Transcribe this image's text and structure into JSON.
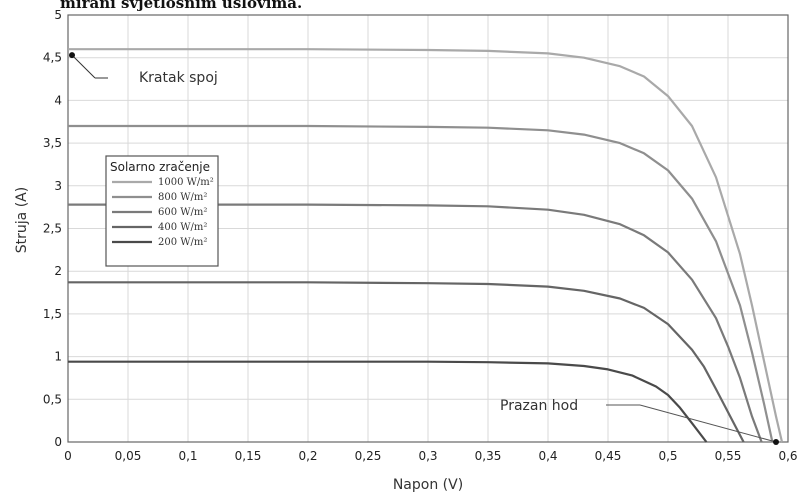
{
  "header_text": "mirani svjetlosnim uslovima.",
  "chart_data": {
    "type": "line",
    "xlabel": "Napon (V)",
    "ylabel": "Struja (A)",
    "xlim": [
      0,
      0.6
    ],
    "ylim": [
      0,
      5
    ],
    "x_ticks": [
      "0",
      "0,05",
      "0,1",
      "0,15",
      "0,2",
      "0,25",
      "0,3",
      "0,35",
      "0,4",
      "0,45",
      "0,5",
      "0,55",
      "0,6"
    ],
    "y_ticks": [
      "0",
      "0,5",
      "1",
      "1,5",
      "2",
      "2,5",
      "3",
      "3,5",
      "4",
      "4,5",
      "5"
    ],
    "grid": true,
    "legend": {
      "title": "Solarno zračenje",
      "placement": "upper-left",
      "entries": [
        "1000 W/m²",
        "800 W/m²",
        "600 W/m²",
        "400 W/m²",
        "200 W/m²"
      ]
    },
    "series": [
      {
        "name": "1000 W/m²",
        "color": "#a9a9a9",
        "x": [
          0,
          0.1,
          0.2,
          0.3,
          0.35,
          0.4,
          0.43,
          0.46,
          0.48,
          0.5,
          0.52,
          0.54,
          0.56,
          0.57,
          0.58,
          0.59,
          0.595
        ],
        "y": [
          4.6,
          4.6,
          4.6,
          4.59,
          4.58,
          4.55,
          4.5,
          4.4,
          4.28,
          4.05,
          3.7,
          3.1,
          2.2,
          1.6,
          0.95,
          0.3,
          0
        ]
      },
      {
        "name": "800 W/m²",
        "color": "#8f8f8f",
        "x": [
          0,
          0.1,
          0.2,
          0.3,
          0.35,
          0.4,
          0.43,
          0.46,
          0.48,
          0.5,
          0.52,
          0.54,
          0.56,
          0.57,
          0.58,
          0.587
        ],
        "y": [
          3.7,
          3.7,
          3.7,
          3.69,
          3.68,
          3.65,
          3.6,
          3.5,
          3.38,
          3.18,
          2.85,
          2.35,
          1.6,
          1.05,
          0.45,
          0
        ]
      },
      {
        "name": "600 W/m²",
        "color": "#7a7a7a",
        "x": [
          0,
          0.1,
          0.2,
          0.3,
          0.35,
          0.4,
          0.43,
          0.46,
          0.48,
          0.5,
          0.52,
          0.54,
          0.55,
          0.56,
          0.57,
          0.578
        ],
        "y": [
          2.78,
          2.78,
          2.78,
          2.77,
          2.76,
          2.72,
          2.66,
          2.55,
          2.42,
          2.22,
          1.9,
          1.45,
          1.12,
          0.75,
          0.3,
          0
        ]
      },
      {
        "name": "400 W/m²",
        "color": "#656565",
        "x": [
          0,
          0.1,
          0.2,
          0.3,
          0.35,
          0.4,
          0.43,
          0.46,
          0.48,
          0.5,
          0.52,
          0.53,
          0.54,
          0.55,
          0.563
        ],
        "y": [
          1.87,
          1.87,
          1.87,
          1.86,
          1.85,
          1.82,
          1.77,
          1.68,
          1.57,
          1.38,
          1.08,
          0.88,
          0.62,
          0.35,
          0
        ]
      },
      {
        "name": "200 W/m²",
        "color": "#4a4a4a",
        "x": [
          0,
          0.1,
          0.2,
          0.3,
          0.35,
          0.4,
          0.43,
          0.45,
          0.47,
          0.49,
          0.5,
          0.51,
          0.52,
          0.532
        ],
        "y": [
          0.94,
          0.94,
          0.94,
          0.94,
          0.935,
          0.92,
          0.89,
          0.85,
          0.78,
          0.65,
          0.55,
          0.4,
          0.22,
          0
        ]
      }
    ],
    "annotations": [
      {
        "text": "Kratak spoj",
        "x": 0,
        "y": 4.6
      },
      {
        "text": "Prazan hod",
        "x": 0.59,
        "y": 0
      }
    ]
  }
}
